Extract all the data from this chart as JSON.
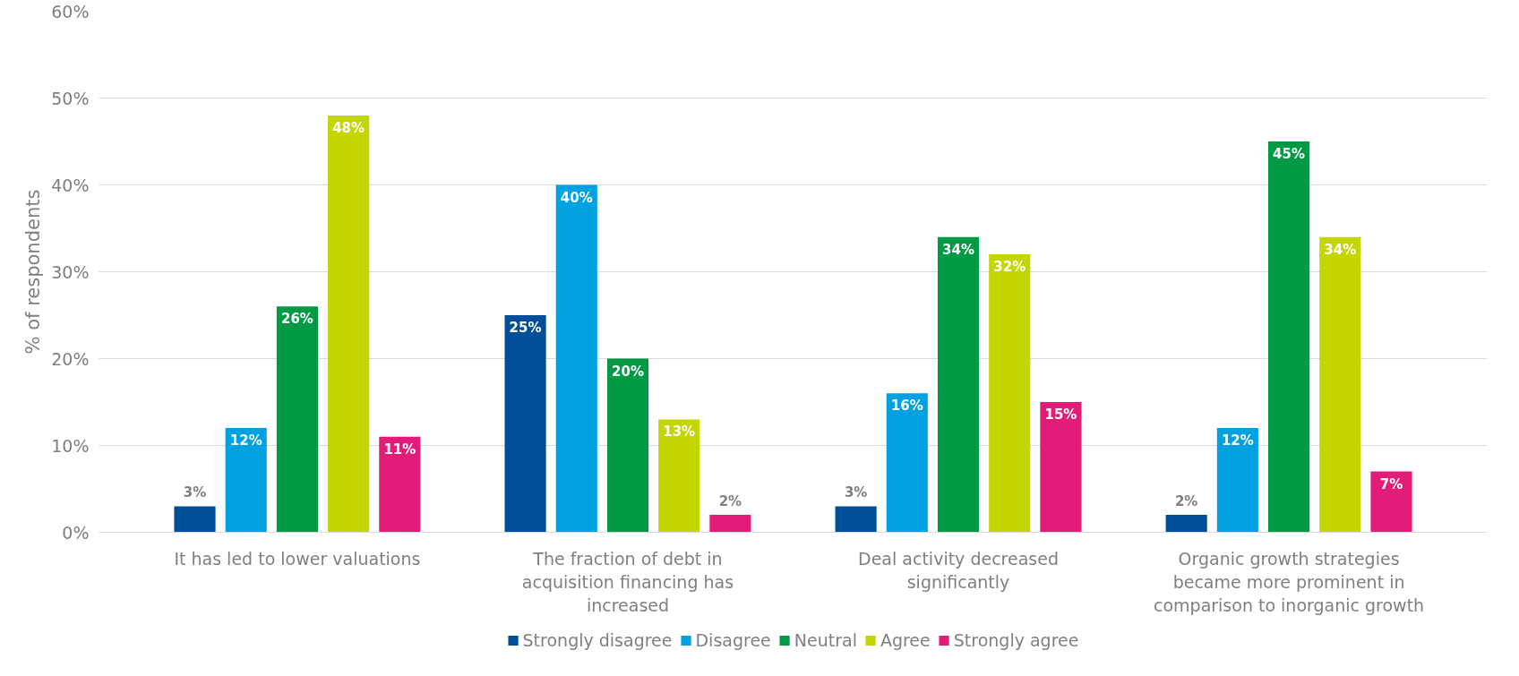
{
  "chart_data": {
    "type": "bar",
    "ylabel": "% of respondents",
    "categories": [
      "It has led to lower valuations",
      "The fraction of debt in acquisition financing has increased",
      "Deal activity decreased significantly",
      "Organic growth strategies became more prominent in comparison to inorganic growth"
    ],
    "series": [
      {
        "name": "Strongly disagree",
        "color": "#004f98",
        "values": [
          3,
          25,
          3,
          2
        ],
        "value_labels": [
          "3%",
          "25%",
          "3%",
          "2%"
        ]
      },
      {
        "name": "Disagree",
        "color": "#00a1e0",
        "values": [
          12,
          40,
          16,
          12
        ],
        "value_labels": [
          "12%",
          "40%",
          "16%",
          "12%"
        ]
      },
      {
        "name": "Neutral",
        "color": "#009a44",
        "values": [
          26,
          20,
          34,
          45
        ],
        "value_labels": [
          "26%",
          "20%",
          "34%",
          "45%"
        ]
      },
      {
        "name": "Agree",
        "color": "#c4d600",
        "values": [
          48,
          13,
          32,
          34
        ],
        "value_labels": [
          "48%",
          "13%",
          "32%",
          "34%"
        ]
      },
      {
        "name": "Strongly agree",
        "color": "#e31c79",
        "values": [
          11,
          2,
          15,
          7
        ],
        "value_labels": [
          "11%",
          "2%",
          "15%",
          "7%"
        ]
      }
    ],
    "ylim": [
      0,
      60
    ],
    "yticks": [
      {
        "value": 0,
        "label": "0%"
      },
      {
        "value": 10,
        "label": "10%"
      },
      {
        "value": 20,
        "label": "20%"
      },
      {
        "value": 30,
        "label": "30%"
      },
      {
        "value": 40,
        "label": "40%"
      },
      {
        "value": 50,
        "label": "50%"
      },
      {
        "value": 60,
        "label": "60%"
      }
    ],
    "grid": "y",
    "legend": "bottom"
  }
}
